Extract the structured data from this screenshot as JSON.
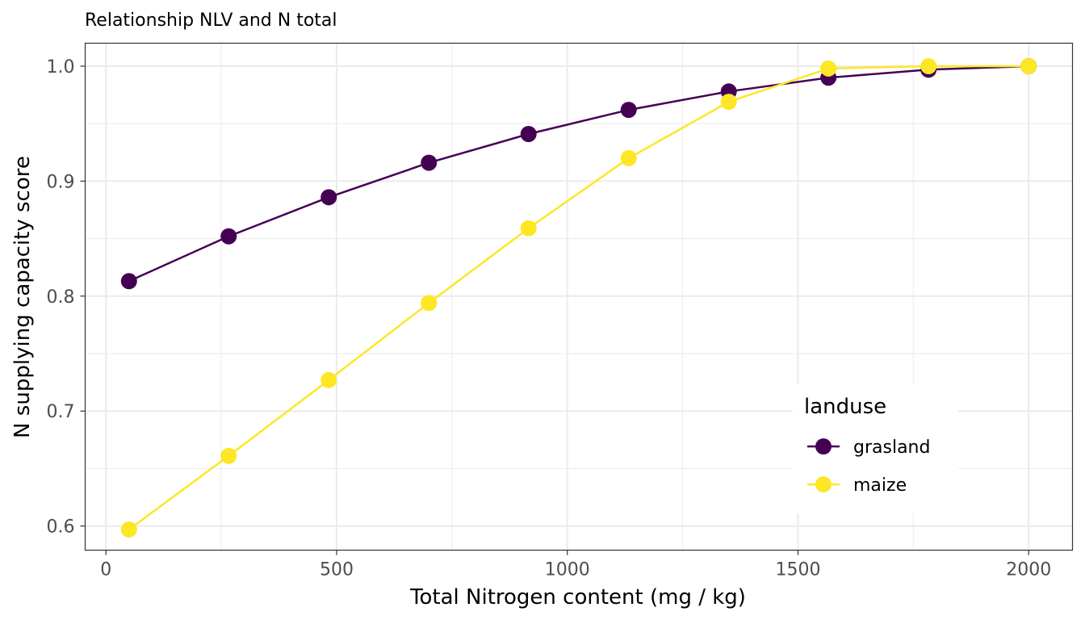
{
  "chart_data": {
    "type": "line",
    "title": "Relationship NLV and N total",
    "xlabel": "Total Nitrogen content (mg / kg)",
    "ylabel": "N supplying capacity score",
    "xlim": [
      -45,
      2095
    ],
    "ylim": [
      0.579,
      1.02
    ],
    "xticks": [
      0,
      500,
      1000,
      1500,
      2000
    ],
    "xtick_labels": [
      "0",
      "500",
      "1000",
      "1500",
      "2000"
    ],
    "yticks": [
      0.6,
      0.7,
      0.8,
      0.9,
      1.0
    ],
    "ytick_labels": [
      "0.6",
      "0.7",
      "0.8",
      "0.9",
      "1.0"
    ],
    "grid": true,
    "legend": {
      "title": "landuse",
      "position": "bottom-right"
    },
    "x": [
      50,
      266,
      483,
      700,
      916,
      1133,
      1350,
      1566,
      1783,
      2000
    ],
    "series": [
      {
        "name": "grasland",
        "color": "#440154",
        "values": [
          0.813,
          0.852,
          0.886,
          0.916,
          0.941,
          0.962,
          0.978,
          0.99,
          0.997,
          1.0
        ]
      },
      {
        "name": "maize",
        "color": "#FDE725",
        "values": [
          0.597,
          0.661,
          0.727,
          0.794,
          0.859,
          0.92,
          0.969,
          0.998,
          1.0,
          1.0
        ]
      }
    ]
  }
}
